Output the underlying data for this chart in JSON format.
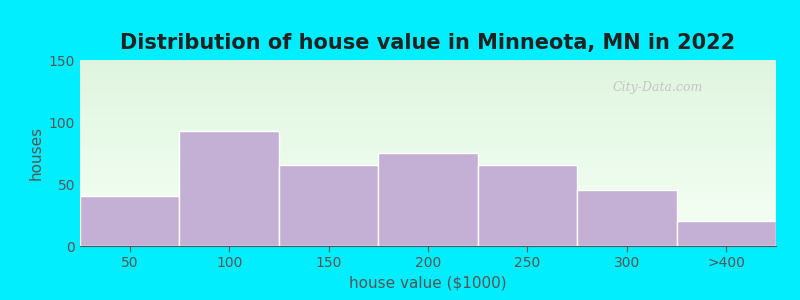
{
  "title": "Distribution of house value in Minneota, MN in 2022",
  "xlabel": "house value ($1000)",
  "ylabel": "houses",
  "categories": [
    "50",
    "100",
    "150",
    "200",
    "250",
    "300",
    ">400"
  ],
  "values": [
    40,
    93,
    65,
    75,
    65,
    45,
    20
  ],
  "bar_color": "#c4b0d4",
  "bar_edgecolor": "#ffffff",
  "ylim": [
    0,
    150
  ],
  "yticks": [
    0,
    50,
    100,
    150
  ],
  "background_outer": "#00EEFF",
  "title_fontsize": 15,
  "axis_fontsize": 11,
  "tick_fontsize": 10,
  "watermark_text": "City-Data.com",
  "tick_color": "#555555",
  "label_color": "#555555"
}
